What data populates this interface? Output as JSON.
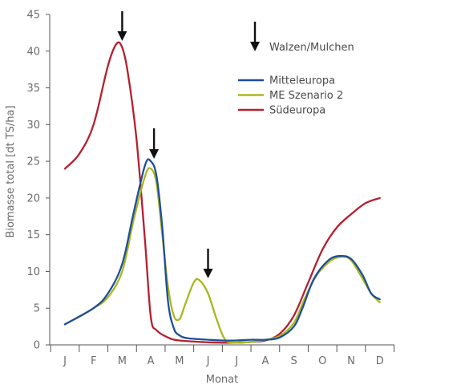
{
  "chart_data": {
    "type": "line",
    "title": "",
    "xlabel": "Monat",
    "ylabel": "Biomasse total [dt TS/ha]",
    "x": [
      "J",
      "F",
      "M",
      "A",
      "M",
      "J",
      "J",
      "A",
      "S",
      "O",
      "N",
      "D"
    ],
    "ylim": [
      0,
      45
    ],
    "yticks": [
      0,
      5,
      10,
      15,
      20,
      25,
      30,
      35,
      40,
      45
    ],
    "grid": false,
    "legend_position": "top-right",
    "arrow_legend_label": "Walzen/Mulchen",
    "arrow_months": [
      "M",
      "A",
      "J"
    ],
    "series": [
      {
        "name": "Mitteleuropa",
        "color": "#1f4e9a",
        "points": [
          [
            1,
            2.8
          ],
          [
            2,
            5
          ],
          [
            2.5,
            7
          ],
          [
            3,
            11
          ],
          [
            3.4,
            18
          ],
          [
            3.8,
            24.5
          ],
          [
            4,
            25
          ],
          [
            4.2,
            23
          ],
          [
            4.4,
            16
          ],
          [
            4.6,
            6
          ],
          [
            4.8,
            2.3
          ],
          [
            5,
            1.3
          ],
          [
            5.3,
            0.9
          ],
          [
            6,
            0.7
          ],
          [
            6.5,
            0.6
          ],
          [
            7,
            0.6
          ],
          [
            7.5,
            0.7
          ],
          [
            8,
            0.7
          ],
          [
            8.5,
            1
          ],
          [
            9,
            2.5
          ],
          [
            9.3,
            5
          ],
          [
            9.7,
            9
          ],
          [
            10.2,
            11.5
          ],
          [
            10.6,
            12.1
          ],
          [
            11,
            11.7
          ],
          [
            11.4,
            9.5
          ],
          [
            11.7,
            7
          ],
          [
            12,
            6.2
          ]
        ]
      },
      {
        "name": "ME Szenario 2",
        "color": "#a8b820",
        "points": [
          [
            1,
            2.8
          ],
          [
            2,
            5
          ],
          [
            2.5,
            6.5
          ],
          [
            3,
            10
          ],
          [
            3.4,
            17
          ],
          [
            3.8,
            23
          ],
          [
            4,
            24
          ],
          [
            4.2,
            22
          ],
          [
            4.4,
            15
          ],
          [
            4.6,
            8
          ],
          [
            4.8,
            4
          ],
          [
            5,
            3.5
          ],
          [
            5.2,
            5.5
          ],
          [
            5.5,
            8.5
          ],
          [
            5.7,
            8.8
          ],
          [
            6,
            7
          ],
          [
            6.3,
            3.5
          ],
          [
            6.6,
            0.7
          ],
          [
            7,
            0.3
          ],
          [
            7.5,
            0.4
          ],
          [
            8,
            0.7
          ],
          [
            8.5,
            1.2
          ],
          [
            9,
            3
          ],
          [
            9.4,
            6.5
          ],
          [
            9.8,
            9.5
          ],
          [
            10.3,
            11.5
          ],
          [
            10.7,
            12
          ],
          [
            11,
            11.5
          ],
          [
            11.4,
            9
          ],
          [
            11.7,
            7
          ],
          [
            12,
            5.8
          ]
        ]
      },
      {
        "name": "Südeuropa",
        "color": "#b5202e",
        "points": [
          [
            1,
            24
          ],
          [
            1.5,
            26
          ],
          [
            2,
            30
          ],
          [
            2.5,
            38
          ],
          [
            2.8,
            41
          ],
          [
            3,
            40.5
          ],
          [
            3.2,
            37
          ],
          [
            3.5,
            28
          ],
          [
            3.8,
            14
          ],
          [
            4,
            3.8
          ],
          [
            4.2,
            2
          ],
          [
            4.6,
            1
          ],
          [
            5,
            0.6
          ],
          [
            6,
            0.35
          ],
          [
            6.5,
            0.3
          ],
          [
            7,
            0.3
          ],
          [
            7.5,
            0.4
          ],
          [
            8,
            0.6
          ],
          [
            8.5,
            1.5
          ],
          [
            9,
            4
          ],
          [
            9.5,
            8.5
          ],
          [
            10,
            13
          ],
          [
            10.5,
            16
          ],
          [
            11,
            17.8
          ],
          [
            11.5,
            19.3
          ],
          [
            12,
            20
          ]
        ]
      }
    ]
  }
}
